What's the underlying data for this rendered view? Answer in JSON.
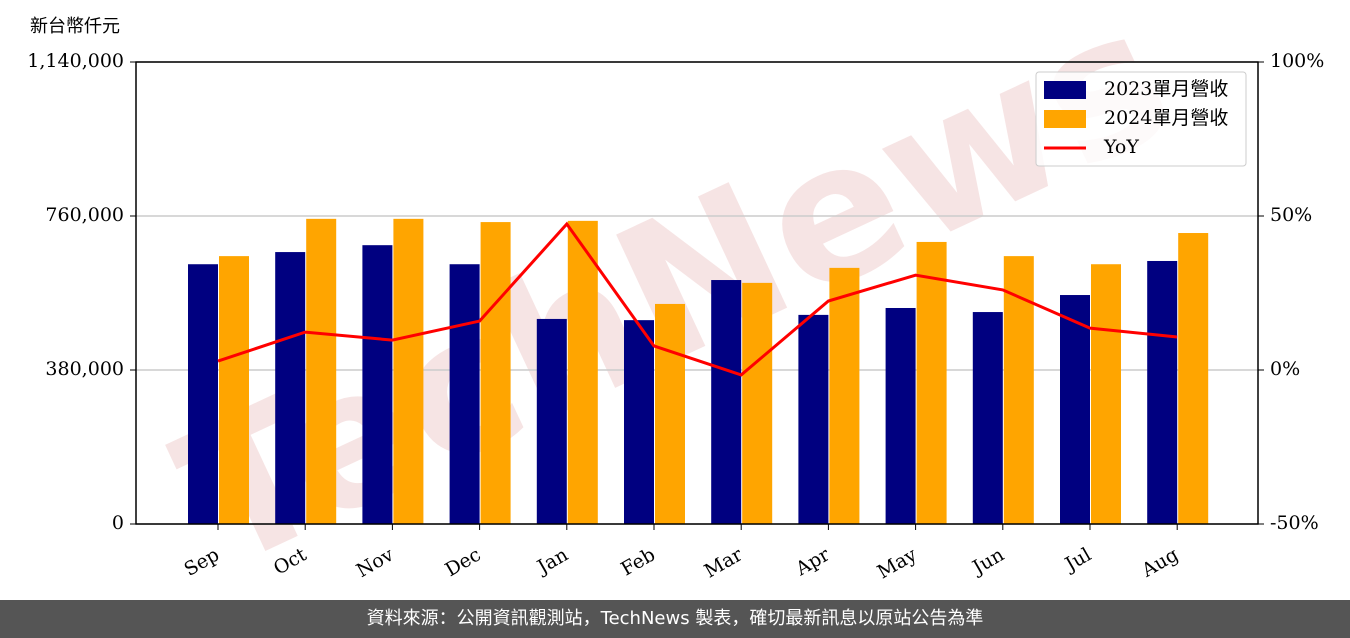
{
  "chart_data": {
    "type": "bar_line",
    "y_label": "新台幣仟元",
    "watermark": "TechNews",
    "categories": [
      "Sep",
      "Oct",
      "Nov",
      "Dec",
      "Jan",
      "Feb",
      "Mar",
      "Apr",
      "May",
      "Jun",
      "Jul",
      "Aug"
    ],
    "series": [
      {
        "name": "2023單月營收",
        "color": "#000080",
        "type": "bar",
        "values": [
          641000,
          671000,
          688000,
          641000,
          506000,
          503000,
          602000,
          516000,
          533000,
          523000,
          565000,
          649000
        ]
      },
      {
        "name": "2024單月營收",
        "color": "#ffa500",
        "type": "bar",
        "values": [
          661000,
          753000,
          753000,
          745000,
          748000,
          543000,
          595000,
          632000,
          696000,
          661000,
          641000,
          718000
        ]
      },
      {
        "name": "YoY",
        "color": "#ff0000",
        "type": "line",
        "axis": "y2",
        "values": [
          2.9,
          12.3,
          9.7,
          15.9,
          47.4,
          7.8,
          -1.6,
          22.4,
          30.8,
          26.0,
          13.6,
          10.7
        ]
      }
    ],
    "ylim": [
      0,
      1140000
    ],
    "yticks": [
      0,
      {
        "value": 380000,
        "label": "380,000"
      },
      {
        "value": 760000,
        "label": "760,000"
      },
      {
        "value": 1140000,
        "label": "1,140,000"
      }
    ],
    "y2lim": [
      -50,
      100
    ],
    "y2ticks": [
      {
        "value": -50,
        "label": "-50%"
      },
      {
        "value": 0,
        "label": "0%"
      },
      {
        "value": 50,
        "label": "50%"
      },
      {
        "value": 100,
        "label": "100%"
      }
    ],
    "grid": true,
    "legend": "upper right"
  },
  "footer": "資料來源：公開資訊觀測站，TechNews 製表，確切最新訊息以原站公告為準"
}
